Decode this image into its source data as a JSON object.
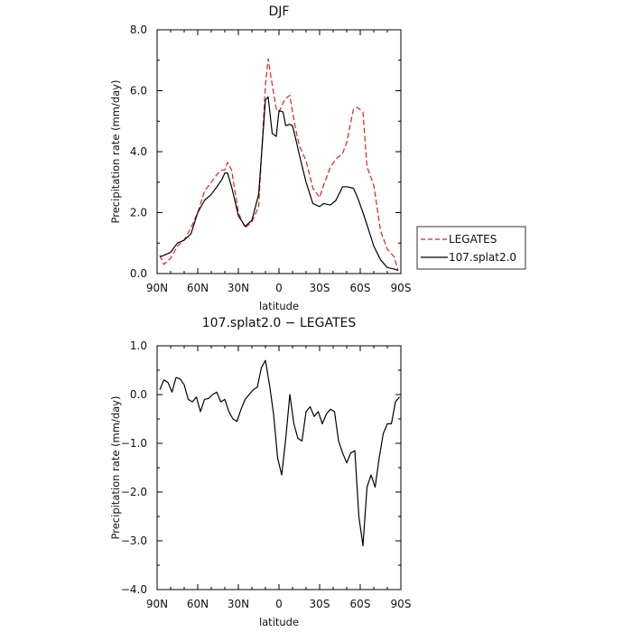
{
  "chart_data": [
    {
      "type": "line",
      "title": "DJF",
      "xlabel": "latitude",
      "ylabel": "Precipitation rate (mm/day)",
      "x_ticks": [
        {
          "value": 90,
          "label": "90N"
        },
        {
          "value": 60,
          "label": "60N"
        },
        {
          "value": 30,
          "label": "30N"
        },
        {
          "value": 0,
          "label": "0"
        },
        {
          "value": -30,
          "label": "30S"
        },
        {
          "value": -60,
          "label": "60S"
        },
        {
          "value": -90,
          "label": "90S"
        }
      ],
      "y_ticks": [
        {
          "value": 0,
          "label": "0.0"
        },
        {
          "value": 2,
          "label": "2.0"
        },
        {
          "value": 4,
          "label": "4.0"
        },
        {
          "value": 6,
          "label": "6.0"
        },
        {
          "value": 8,
          "label": "8.0"
        }
      ],
      "xlim": [
        90,
        -90
      ],
      "ylim": [
        0,
        8
      ],
      "legend_position": "outside-right",
      "series": [
        {
          "name": "LEGATES",
          "color": "#e02020",
          "dash": "dashed",
          "x": [
            88,
            85,
            80,
            75,
            70,
            65,
            60,
            55,
            50,
            45,
            42,
            40,
            38,
            35,
            30,
            25,
            20,
            15,
            10,
            8,
            5,
            2,
            0,
            -3,
            -5,
            -8,
            -10,
            -13,
            -15,
            -20,
            -25,
            -30,
            -33,
            -38,
            -42,
            -47,
            -50,
            -55,
            -58,
            -62,
            -65,
            -70,
            -75,
            -80,
            -85,
            -88
          ],
          "y": [
            0.6,
            0.3,
            0.5,
            0.9,
            1.1,
            1.5,
            2.0,
            2.7,
            3.0,
            3.3,
            3.4,
            3.4,
            3.65,
            3.4,
            2.0,
            1.5,
            1.7,
            2.2,
            6.2,
            7.05,
            6.2,
            5.4,
            5.3,
            5.6,
            5.75,
            5.85,
            5.3,
            4.6,
            4.2,
            3.7,
            2.8,
            2.5,
            2.9,
            3.5,
            3.75,
            3.95,
            4.3,
            5.4,
            5.45,
            5.3,
            3.5,
            2.9,
            1.4,
            0.8,
            0.55,
            0.1
          ]
        },
        {
          "name": "107.splat2.0",
          "color": "#000000",
          "dash": "solid",
          "x": [
            88,
            85,
            80,
            75,
            70,
            65,
            60,
            55,
            50,
            45,
            42,
            40,
            38,
            35,
            30,
            25,
            20,
            15,
            10,
            8,
            5,
            2,
            0,
            -3,
            -5,
            -8,
            -10,
            -13,
            -15,
            -20,
            -25,
            -30,
            -33,
            -38,
            -42,
            -47,
            -50,
            -55,
            -58,
            -62,
            -65,
            -70,
            -75,
            -80,
            -85,
            -88
          ],
          "y": [
            0.55,
            0.6,
            0.7,
            1.0,
            1.1,
            1.3,
            2.0,
            2.4,
            2.6,
            2.9,
            3.1,
            3.3,
            3.3,
            2.85,
            1.9,
            1.55,
            1.75,
            2.6,
            5.7,
            5.8,
            4.6,
            4.5,
            5.35,
            5.3,
            4.85,
            4.9,
            4.85,
            4.3,
            3.9,
            3.0,
            2.3,
            2.2,
            2.3,
            2.25,
            2.4,
            2.85,
            2.85,
            2.8,
            2.5,
            2.0,
            1.6,
            0.9,
            0.45,
            0.2,
            0.15,
            0.1
          ]
        }
      ]
    },
    {
      "type": "line",
      "title": "107.splat2.0 − LEGATES",
      "xlabel": "latitude",
      "ylabel": "Precipitation rate (mm/day)",
      "x_ticks": [
        {
          "value": 90,
          "label": "90N"
        },
        {
          "value": 60,
          "label": "60N"
        },
        {
          "value": 30,
          "label": "30N"
        },
        {
          "value": 0,
          "label": "0"
        },
        {
          "value": -30,
          "label": "30S"
        },
        {
          "value": -60,
          "label": "60S"
        },
        {
          "value": -90,
          "label": "90S"
        }
      ],
      "y_ticks": [
        {
          "value": -4,
          "label": "−4.0"
        },
        {
          "value": -3,
          "label": "−3.0"
        },
        {
          "value": -2,
          "label": "−2.0"
        },
        {
          "value": -1,
          "label": "−1.0"
        },
        {
          "value": 0,
          "label": "0.0"
        },
        {
          "value": 1,
          "label": "1.0"
        }
      ],
      "xlim": [
        90,
        -90
      ],
      "ylim": [
        -4,
        1
      ],
      "series": [
        {
          "color": "#000000",
          "dash": "solid",
          "x": [
            88,
            85,
            82,
            79,
            76,
            73,
            70,
            67,
            64,
            61,
            58,
            55,
            52,
            49,
            46,
            43,
            40,
            37,
            34,
            31,
            28,
            25,
            22,
            19,
            16,
            13,
            10,
            7,
            4,
            1,
            -2,
            -5,
            -8,
            -11,
            -14,
            -17,
            -20,
            -23,
            -26,
            -29,
            -32,
            -35,
            -38,
            -41,
            -44,
            -47,
            -50,
            -53,
            -56,
            -59,
            -62,
            -65,
            -68,
            -71,
            -74,
            -77,
            -80,
            -83,
            -86,
            -89
          ],
          "y": [
            0.1,
            0.3,
            0.25,
            0.05,
            0.35,
            0.32,
            0.2,
            -0.1,
            -0.15,
            -0.05,
            -0.35,
            -0.1,
            -0.08,
            0.0,
            0.05,
            -0.15,
            -0.1,
            -0.35,
            -0.5,
            -0.55,
            -0.3,
            -0.1,
            0.0,
            0.1,
            0.15,
            0.55,
            0.7,
            0.2,
            -0.4,
            -1.3,
            -1.65,
            -0.9,
            0.0,
            -0.6,
            -0.9,
            -0.95,
            -0.35,
            -0.25,
            -0.45,
            -0.35,
            -0.6,
            -0.4,
            -0.3,
            -0.35,
            -0.95,
            -1.2,
            -1.4,
            -1.2,
            -1.15,
            -2.5,
            -3.1,
            -1.9,
            -1.65,
            -1.9,
            -1.3,
            -0.8,
            -0.6,
            -0.6,
            -0.15,
            -0.05
          ]
        }
      ]
    }
  ]
}
